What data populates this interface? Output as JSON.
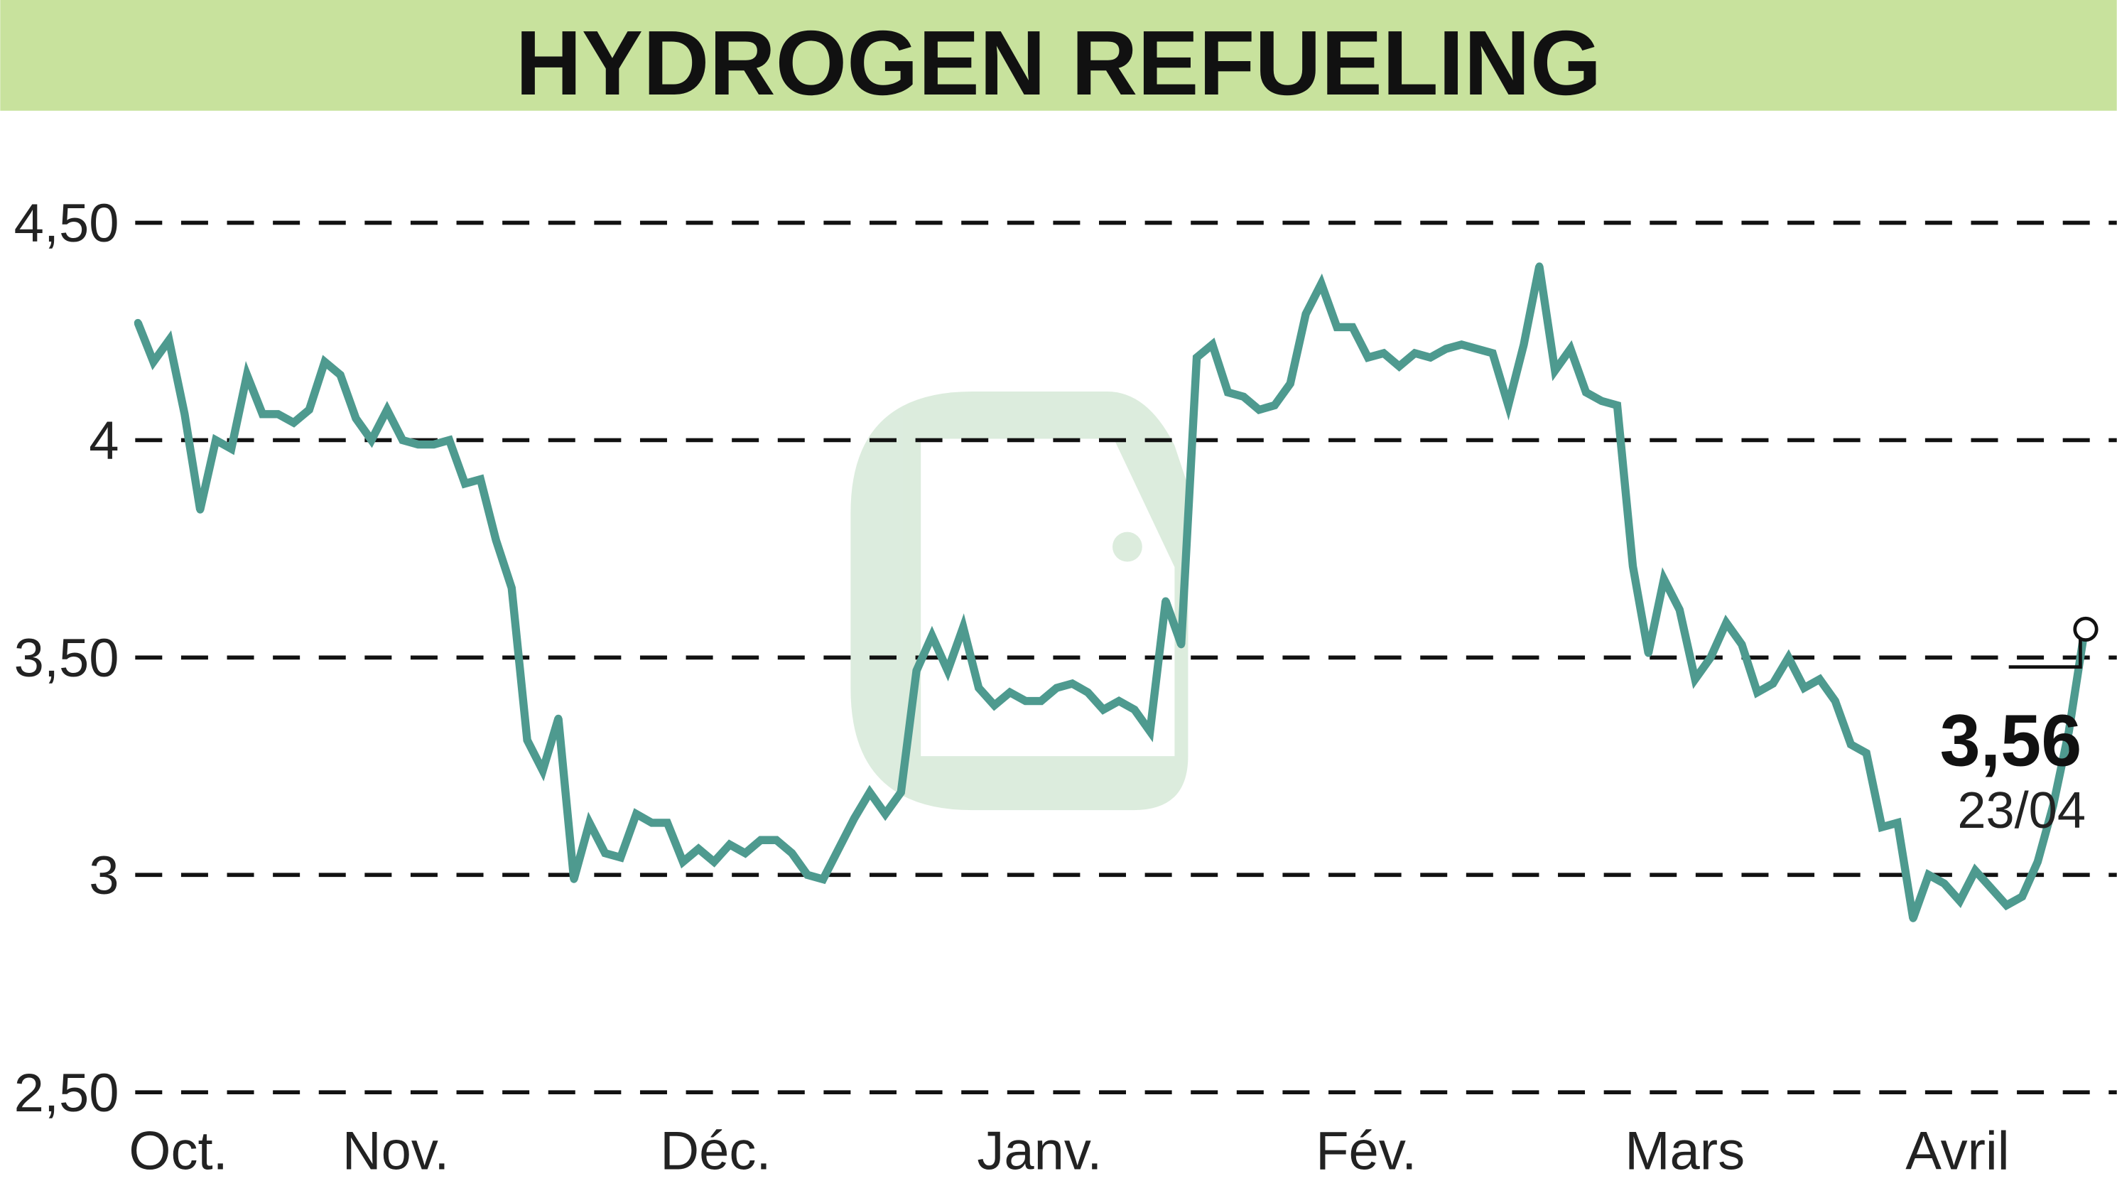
{
  "chart_data": {
    "type": "line",
    "title": "HYDROGEN REFUELING",
    "xlabel": "",
    "ylabel": "",
    "ylim": [
      2.5,
      4.5
    ],
    "y_ticks": [
      "4,50",
      "4",
      "3,50",
      "3",
      "2,50"
    ],
    "y_tick_values": [
      4.5,
      4.0,
      3.5,
      3.0,
      2.5
    ],
    "x_tick_labels": [
      "Oct.",
      "Nov.",
      "Déc.",
      "Janv.",
      "Fév.",
      "Mars",
      "Avril"
    ],
    "shaded_months": [
      "Oct.",
      "Déc.",
      "Fév.",
      "Avril"
    ],
    "grid": "horizontal dashed",
    "values": [
      4.27,
      4.18,
      4.23,
      4.06,
      3.84,
      4.0,
      3.98,
      4.15,
      4.06,
      4.06,
      4.04,
      4.07,
      4.18,
      4.15,
      4.05,
      4.0,
      4.07,
      4.0,
      3.99,
      3.99,
      4.0,
      3.9,
      3.91,
      3.77,
      3.66,
      3.31,
      3.24,
      3.36,
      2.99,
      3.12,
      3.05,
      3.04,
      3.14,
      3.12,
      3.12,
      3.03,
      3.06,
      3.03,
      3.07,
      3.05,
      3.08,
      3.08,
      3.05,
      3.0,
      2.99,
      3.06,
      3.13,
      3.19,
      3.14,
      3.19,
      3.47,
      3.55,
      3.47,
      3.57,
      3.43,
      3.39,
      3.42,
      3.4,
      3.4,
      3.43,
      3.44,
      3.42,
      3.38,
      3.4,
      3.38,
      3.33,
      3.63,
      3.53,
      4.19,
      4.22,
      4.11,
      4.1,
      4.07,
      4.08,
      4.13,
      4.29,
      4.36,
      4.26,
      4.26,
      4.19,
      4.2,
      4.17,
      4.2,
      4.19,
      4.21,
      4.22,
      4.21,
      4.2,
      4.08,
      4.22,
      4.4,
      4.16,
      4.21,
      4.11,
      4.09,
      4.08,
      3.71,
      3.51,
      3.68,
      3.61,
      3.45,
      3.5,
      3.58,
      3.53,
      3.42,
      3.44,
      3.5,
      3.43,
      3.45,
      3.4,
      3.3,
      3.28,
      3.11,
      3.12,
      2.9,
      3.0,
      2.98,
      2.94,
      3.01,
      2.97,
      2.93,
      2.95,
      3.03,
      3.16,
      3.33,
      3.56
    ],
    "last_value": "3,56",
    "last_date": "23/04",
    "colors": {
      "line": "#4e9a8f",
      "shade": "#c8e29d",
      "title_bar": "#c8e29d"
    }
  }
}
